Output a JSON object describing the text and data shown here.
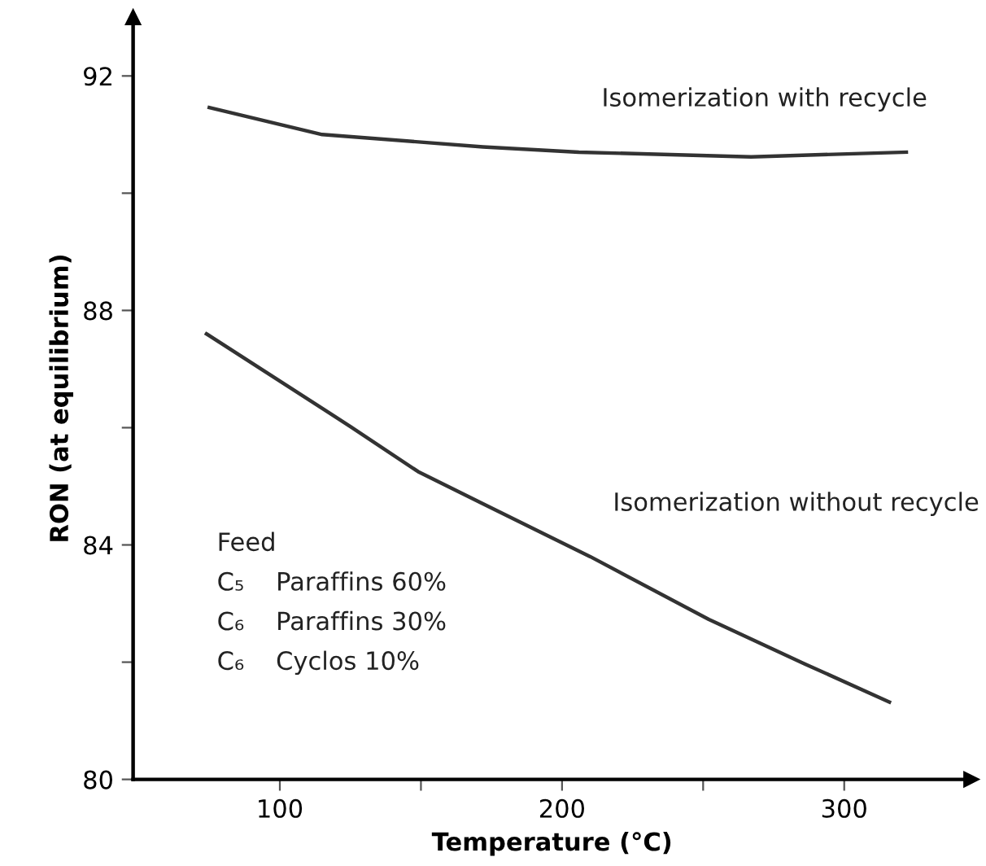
{
  "chart_data": {
    "type": "line",
    "xlabel": "Temperature (°C)",
    "ylabel": "RON (at equilibrium)",
    "series": [
      {
        "name": "Isomerization with recycle",
        "color": "#333333",
        "x": [
          75,
          115,
          172,
          206,
          267,
          322
        ],
        "values": [
          91.46,
          91.0,
          90.79,
          90.7,
          90.62,
          90.7
        ]
      },
      {
        "name": "Isomerization without recycle",
        "color": "#333333",
        "x": [
          74,
          125,
          149,
          172,
          210,
          252,
          286,
          316
        ],
        "values": [
          87.6,
          86.02,
          85.25,
          84.7,
          83.8,
          82.73,
          81.97,
          81.32
        ]
      }
    ],
    "annotations": [
      "Feed",
      "C₅    Paraffins 60%",
      "C₆    Paraffins 30%",
      "C₆    Cyclos 10%"
    ],
    "xlim": [
      48,
      345
    ],
    "ylim": [
      80,
      93
    ],
    "xticks": [
      100,
      {
        "value": 150,
        "label": null
      },
      200,
      {
        "value": 250,
        "label": null
      },
      300
    ],
    "yticks": [
      80,
      {
        "value": 82,
        "label": null
      },
      84,
      {
        "value": 86,
        "label": null
      },
      88,
      {
        "value": 90,
        "label": null
      },
      92
    ],
    "grid": false,
    "legend": false,
    "marker": "none",
    "line_style": "solid"
  }
}
